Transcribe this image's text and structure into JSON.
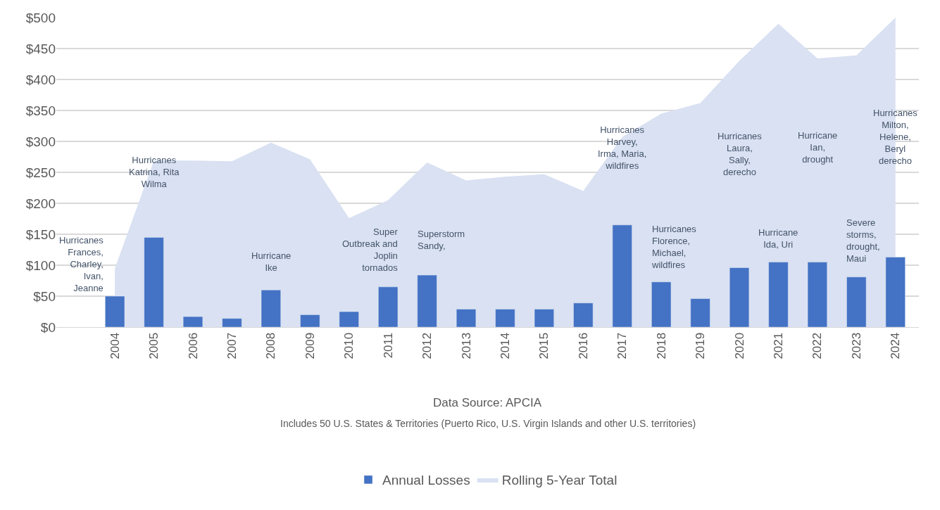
{
  "chart_data": {
    "type": "bar",
    "categories": [
      "2004",
      "2005",
      "2006",
      "2007",
      "2008",
      "2009",
      "2010",
      "2011",
      "2012",
      "2013",
      "2014",
      "2015",
      "2016",
      "2017",
      "2018",
      "2019",
      "2020",
      "2021",
      "2022",
      "2023",
      "2024"
    ],
    "series": [
      {
        "name": "Annual Losses",
        "color": "#4472c4",
        "values": [
          50,
          145,
          17,
          14,
          60,
          20,
          25,
          65,
          84,
          29,
          29,
          29,
          39,
          165,
          73,
          46,
          96,
          105,
          105,
          81,
          113
        ]
      },
      {
        "name": "Rolling 5-Year Total",
        "type": "area",
        "color": "#d9e1f2",
        "values": [
          95,
          269,
          269,
          268,
          298,
          271,
          176,
          205,
          266,
          237,
          243,
          247,
          220,
          307,
          345,
          362,
          430,
          490,
          434,
          439,
          500
        ]
      }
    ],
    "ylim": [
      0,
      500
    ],
    "yticks": [
      {
        "value": 0,
        "label": "$0"
      },
      {
        "value": 50,
        "label": "$50"
      },
      {
        "value": 100,
        "label": "$100"
      },
      {
        "value": 150,
        "label": "$150"
      },
      {
        "value": 200,
        "label": "$200"
      },
      {
        "value": 250,
        "label": "$250"
      },
      {
        "value": 300,
        "label": "$300"
      },
      {
        "value": 350,
        "label": "$350"
      },
      {
        "value": 400,
        "label": "$400"
      },
      {
        "value": 450,
        "label": "$450"
      },
      {
        "value": 500,
        "label": "$500"
      }
    ],
    "grid": "y",
    "legend": "bottom",
    "annotations": [
      "Hurricanes\nFrances,\nCharley,\nIvan,\nJeanne",
      "Hurricanes\nKatrina, Rita\nWilma",
      "Hurricane\nIke",
      "Super\nOutbreak and\nJoplin\ntornados",
      "Superstorm\nSandy,",
      "Hurricanes\nHarvey,\nIrma, Maria,\nwildfires",
      "Hurricanes\nFlorence,\nMichael,\nwildfires",
      "Hurricanes\nLaura,\nSally,\nderecho",
      "Hurricane\nIda, Uri",
      "Hurricane\nIan,\ndrought",
      "Severe\nstorms,\ndrought,\nMaui",
      "Hurricanes\nMilton,\nHelene,\nBeryl\nderecho",
      "Data Source: APCIA",
      "Includes 50 U.S. States & Territories (Puerto Rico, U.S. Virgin Islands and other U.S. territories)"
    ]
  }
}
